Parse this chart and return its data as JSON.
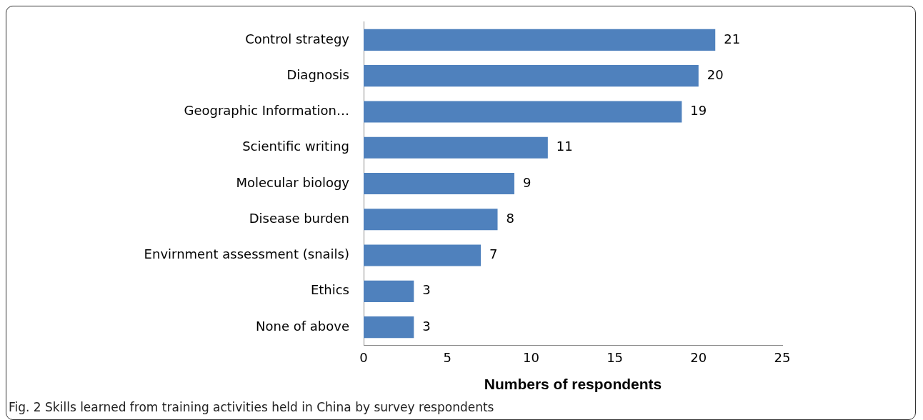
{
  "chart_data": {
    "type": "bar",
    "orientation": "horizontal",
    "xlabel": "Numbers of respondents",
    "categories": [
      "Control strategy",
      "Diagnosis",
      "Geographic Information…",
      "Scientific writing",
      "Molecular biology",
      "Disease burden",
      "Envirnment assessment (snails)",
      "Ethics",
      "None of above"
    ],
    "values": [
      21,
      20,
      19,
      11,
      9,
      8,
      7,
      3,
      3
    ],
    "color": "#4f81bd",
    "xlim": [
      0,
      25
    ],
    "xticks": [
      0,
      5,
      10,
      15,
      20,
      25
    ],
    "grid": false,
    "legend": false,
    "data_labels": true,
    "annotations": [
      "Fig. 2 Skills learned from training activities held in China by survey respondents"
    ]
  }
}
